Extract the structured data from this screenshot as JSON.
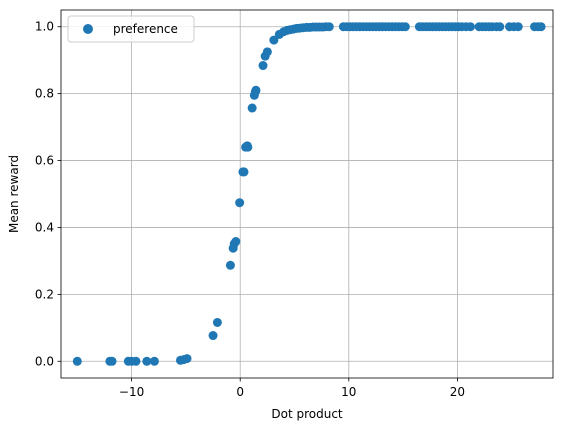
{
  "chart_data": {
    "type": "scatter",
    "xlabel": "Dot product",
    "ylabel": "Mean reward",
    "xlim": [
      -16.5,
      28.8
    ],
    "ylim": [
      -0.05,
      1.05
    ],
    "xticks": [
      -10,
      0,
      10,
      20
    ],
    "yticks": [
      0.0,
      0.2,
      0.4,
      0.6,
      0.8,
      1.0
    ],
    "xtick_labels": [
      "−10",
      "0",
      "10",
      "20"
    ],
    "ytick_labels": [
      "0.0",
      "0.2",
      "0.4",
      "0.6",
      "0.8",
      "1.0"
    ],
    "grid": true,
    "legend": "upper-left",
    "series": [
      {
        "name": "preference",
        "color": "#1f77b4",
        "points": [
          [
            -15.0,
            0.0
          ],
          [
            -12.0,
            0.0
          ],
          [
            -11.8,
            0.0
          ],
          [
            -10.3,
            0.0
          ],
          [
            -10.0,
            0.0
          ],
          [
            -9.6,
            0.0
          ],
          [
            -8.6,
            0.0
          ],
          [
            -7.9,
            0.0
          ],
          [
            -5.5,
            0.003
          ],
          [
            -5.2,
            0.005
          ],
          [
            -4.9,
            0.008
          ],
          [
            -2.5,
            0.077
          ],
          [
            -2.1,
            0.116
          ],
          [
            -0.9,
            0.287
          ],
          [
            -0.65,
            0.338
          ],
          [
            -0.55,
            0.351
          ],
          [
            -0.4,
            0.358
          ],
          [
            -0.05,
            0.474
          ],
          [
            0.25,
            0.566
          ],
          [
            0.35,
            0.566
          ],
          [
            0.5,
            0.64
          ],
          [
            0.6,
            0.642
          ],
          [
            0.65,
            0.644
          ],
          [
            0.7,
            0.64
          ],
          [
            1.1,
            0.757
          ],
          [
            1.3,
            0.795
          ],
          [
            1.4,
            0.806
          ],
          [
            1.45,
            0.81
          ],
          [
            2.1,
            0.884
          ],
          [
            2.3,
            0.912
          ],
          [
            2.5,
            0.925
          ],
          [
            3.1,
            0.96
          ],
          [
            3.6,
            0.977
          ],
          [
            4.0,
            0.985
          ],
          [
            4.3,
            0.989
          ],
          [
            4.6,
            0.991
          ],
          [
            4.9,
            0.993
          ],
          [
            5.2,
            0.995
          ],
          [
            5.5,
            0.996
          ],
          [
            5.8,
            0.997
          ],
          [
            6.1,
            0.998
          ],
          [
            6.4,
            0.998
          ],
          [
            6.7,
            0.999
          ],
          [
            7.0,
            0.999
          ],
          [
            7.3,
            0.999
          ],
          [
            7.6,
            0.999
          ],
          [
            7.9,
            1.0
          ],
          [
            8.2,
            1.0
          ],
          [
            9.5,
            1.0
          ],
          [
            9.8,
            1.0
          ],
          [
            10.1,
            1.0
          ],
          [
            10.4,
            1.0
          ],
          [
            10.7,
            1.0
          ],
          [
            11.0,
            1.0
          ],
          [
            11.3,
            1.0
          ],
          [
            11.6,
            1.0
          ],
          [
            11.9,
            1.0
          ],
          [
            12.2,
            1.0
          ],
          [
            12.5,
            1.0
          ],
          [
            12.8,
            1.0
          ],
          [
            13.1,
            1.0
          ],
          [
            13.4,
            1.0
          ],
          [
            13.7,
            1.0
          ],
          [
            14.0,
            1.0
          ],
          [
            14.3,
            1.0
          ],
          [
            14.6,
            1.0
          ],
          [
            14.9,
            1.0
          ],
          [
            15.2,
            1.0
          ],
          [
            16.5,
            1.0
          ],
          [
            16.8,
            1.0
          ],
          [
            17.1,
            1.0
          ],
          [
            17.4,
            1.0
          ],
          [
            17.7,
            1.0
          ],
          [
            18.0,
            1.0
          ],
          [
            18.3,
            1.0
          ],
          [
            18.6,
            1.0
          ],
          [
            18.9,
            1.0
          ],
          [
            19.2,
            1.0
          ],
          [
            19.5,
            1.0
          ],
          [
            19.8,
            1.0
          ],
          [
            20.1,
            1.0
          ],
          [
            20.4,
            1.0
          ],
          [
            20.8,
            1.0
          ],
          [
            21.2,
            1.0
          ],
          [
            22.0,
            1.0
          ],
          [
            22.3,
            1.0
          ],
          [
            22.6,
            1.0
          ],
          [
            22.9,
            1.0
          ],
          [
            23.2,
            1.0
          ],
          [
            23.6,
            1.0
          ],
          [
            23.9,
            1.0
          ],
          [
            24.8,
            1.0
          ],
          [
            25.2,
            1.0
          ],
          [
            25.6,
            1.0
          ],
          [
            27.1,
            1.0
          ],
          [
            27.4,
            1.0
          ],
          [
            27.7,
            1.0
          ]
        ]
      }
    ]
  }
}
